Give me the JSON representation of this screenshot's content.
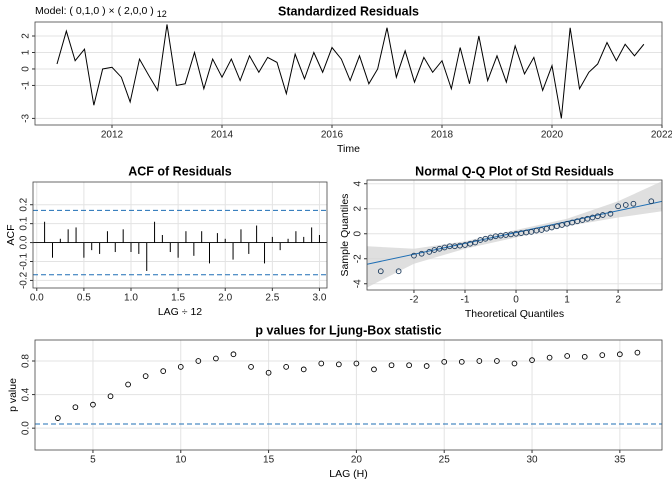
{
  "chart_data": [
    {
      "type": "line",
      "title": "Standardized Residuals",
      "model_label": "Model: ( 0,1,0 ) × ( 2,0,0 )",
      "model_period": "12",
      "xlabel": "Time",
      "color": "#000000",
      "grid": true,
      "x": [
        2011.0,
        2011.17,
        2011.33,
        2011.5,
        2011.67,
        2011.83,
        2012.0,
        2012.17,
        2012.33,
        2012.5,
        2012.67,
        2012.83,
        2013.0,
        2013.17,
        2013.33,
        2013.5,
        2013.67,
        2013.83,
        2014.0,
        2014.17,
        2014.33,
        2014.5,
        2014.67,
        2014.83,
        2015.0,
        2015.17,
        2015.33,
        2015.5,
        2015.67,
        2015.83,
        2016.0,
        2016.17,
        2016.33,
        2016.5,
        2016.67,
        2016.83,
        2017.0,
        2017.17,
        2017.33,
        2017.5,
        2017.67,
        2017.83,
        2018.0,
        2018.17,
        2018.33,
        2018.5,
        2018.67,
        2018.83,
        2019.0,
        2019.17,
        2019.33,
        2019.5,
        2019.67,
        2019.83,
        2020.0,
        2020.17,
        2020.33,
        2020.5,
        2020.67,
        2020.83,
        2021.0,
        2021.17,
        2021.33,
        2021.5,
        2021.67
      ],
      "values": [
        0.3,
        2.3,
        0.5,
        1.2,
        -2.2,
        0.0,
        0.1,
        -0.5,
        -2.0,
        0.6,
        -0.4,
        -1.3,
        2.7,
        -1.0,
        -0.9,
        1.0,
        -1.2,
        0.6,
        -0.5,
        0.6,
        -0.7,
        0.8,
        -0.2,
        0.7,
        0.4,
        -1.5,
        0.9,
        -0.6,
        1.0,
        -0.2,
        1.3,
        0.6,
        -0.7,
        0.8,
        -0.9,
        0.0,
        2.5,
        -0.5,
        1.1,
        -0.8,
        0.7,
        -0.2,
        0.5,
        -1.2,
        1.3,
        -0.9,
        2.0,
        -0.7,
        0.8,
        -0.8,
        1.4,
        -0.3,
        0.7,
        -1.3,
        0.2,
        -3.0,
        2.5,
        -1.2,
        -0.2,
        0.3,
        1.6,
        0.5,
        1.5,
        0.8,
        1.5
      ],
      "xlim": [
        2010.6,
        2022.0
      ],
      "ylim": [
        -3.4,
        2.85
      ],
      "xticks": [
        2012,
        2014,
        2016,
        2018,
        2020,
        2022
      ],
      "yticks": [
        -3,
        -1,
        0,
        1,
        2
      ]
    },
    {
      "type": "bar",
      "title": "ACF of Residuals",
      "xlabel": "LAG ÷ 12",
      "ylabel": "ACF",
      "color": "#000000",
      "grid": true,
      "x": [
        0.083,
        0.167,
        0.25,
        0.333,
        0.417,
        0.5,
        0.583,
        0.667,
        0.75,
        0.833,
        0.917,
        1.0,
        1.083,
        1.167,
        1.25,
        1.333,
        1.417,
        1.5,
        1.583,
        1.667,
        1.75,
        1.833,
        1.917,
        2.0,
        2.083,
        2.167,
        2.25,
        2.333,
        2.417,
        2.5,
        2.583,
        2.667,
        2.75,
        2.833,
        2.917,
        3.0
      ],
      "values": [
        0.11,
        -0.08,
        0.02,
        0.07,
        0.08,
        -0.08,
        -0.04,
        -0.06,
        0.06,
        -0.05,
        0.07,
        -0.05,
        -0.06,
        -0.15,
        0.11,
        0.04,
        -0.05,
        -0.08,
        0.06,
        -0.07,
        0.06,
        -0.11,
        0.05,
        0.02,
        -0.09,
        0.07,
        -0.06,
        0.09,
        -0.11,
        0.03,
        -0.04,
        0.02,
        0.06,
        0.03,
        0.08,
        0.04
      ],
      "hlines": [
        0.17,
        -0.17
      ],
      "hline_color": "#1f6fb5",
      "xlim": [
        -0.04,
        3.08
      ],
      "ylim": [
        -0.24,
        0.32
      ],
      "xticks": [
        {
          "value": 0,
          "label": "0.0"
        },
        0.5,
        {
          "value": 1,
          "label": "1.0"
        },
        1.5,
        {
          "value": 2,
          "label": "2.0"
        },
        2.5,
        {
          "value": 3,
          "label": "3.0"
        }
      ],
      "yticks": [
        -0.2,
        -0.1,
        {
          "value": 0,
          "label": "0.0"
        },
        0.1,
        0.2
      ]
    },
    {
      "type": "scatter",
      "title": "Normal Q-Q Plot of Std Residuals",
      "xlabel": "Theoretical Quantiles",
      "ylabel": "Sample Quantiles",
      "color": "#1b3a5c",
      "grid": true,
      "x": [
        -2.65,
        -2.3,
        -2.0,
        -1.85,
        -1.7,
        -1.6,
        -1.5,
        -1.4,
        -1.3,
        -1.2,
        -1.1,
        -1.0,
        -0.9,
        -0.8,
        -0.7,
        -0.6,
        -0.5,
        -0.4,
        -0.3,
        -0.2,
        -0.1,
        0,
        0.1,
        0.2,
        0.3,
        0.4,
        0.5,
        0.6,
        0.7,
        0.8,
        0.9,
        1.0,
        1.1,
        1.2,
        1.3,
        1.4,
        1.5,
        1.6,
        1.7,
        1.85,
        2.0,
        2.15,
        2.3,
        2.65
      ],
      "values": [
        -3.0,
        -3.0,
        -1.75,
        -1.6,
        -1.45,
        -1.3,
        -1.2,
        -1.1,
        -1.0,
        -1.0,
        -0.95,
        -0.9,
        -0.8,
        -0.7,
        -0.5,
        -0.4,
        -0.3,
        -0.2,
        -0.15,
        -0.1,
        -0.05,
        0.0,
        0.05,
        0.1,
        0.15,
        0.25,
        0.3,
        0.4,
        0.5,
        0.6,
        0.7,
        0.8,
        0.9,
        1.0,
        1.1,
        1.2,
        1.3,
        1.4,
        1.5,
        1.6,
        2.2,
        2.3,
        2.4,
        2.6
      ],
      "ref_line": {
        "x": [
          -2.92,
          2.86
        ],
        "y": [
          -2.44,
          2.59
        ],
        "color": "#1f6fb5"
      },
      "band": {
        "x": [
          -2.92,
          -2.0,
          -1.0,
          0,
          1.0,
          2.0,
          2.86
        ],
        "lower": [
          -4.3,
          -2.4,
          -1.2,
          -0.3,
          0.6,
          1.3,
          1.8
        ],
        "upper": [
          -1.0,
          -1.2,
          -0.6,
          0.3,
          1.2,
          2.6,
          4.2
        ],
        "color": "#d4d4d4"
      },
      "xlim": [
        -2.92,
        2.86
      ],
      "ylim": [
        -4.5,
        4.3
      ],
      "xticks": [
        -2,
        -1,
        0,
        1,
        2
      ],
      "yticks": [
        -4,
        -2,
        0,
        2,
        4
      ]
    },
    {
      "type": "scatter",
      "title": "p values for Ljung-Box statistic",
      "xlabel": "LAG (H)",
      "ylabel": "p value",
      "color": "#000000",
      "grid": true,
      "x": [
        3,
        4,
        5,
        6,
        7,
        8,
        9,
        10,
        11,
        12,
        13,
        14,
        15,
        16,
        17,
        18,
        19,
        20,
        21,
        22,
        23,
        24,
        25,
        26,
        27,
        28,
        29,
        30,
        31,
        32,
        33,
        34,
        35,
        36
      ],
      "values": [
        0.12,
        0.25,
        0.28,
        0.38,
        0.52,
        0.62,
        0.68,
        0.73,
        0.8,
        0.83,
        0.88,
        0.73,
        0.66,
        0.73,
        0.7,
        0.77,
        0.76,
        0.77,
        0.7,
        0.75,
        0.75,
        0.74,
        0.79,
        0.79,
        0.8,
        0.8,
        0.77,
        0.81,
        0.84,
        0.86,
        0.85,
        0.87,
        0.88,
        0.9
      ],
      "hlines": [
        0.05
      ],
      "hline_color": "#1f6fb5",
      "xlim": [
        1.7,
        37.4
      ],
      "ylim": [
        -0.26,
        1.05
      ],
      "xticks": [
        5,
        10,
        15,
        20,
        25,
        30,
        35
      ],
      "yticks": [
        {
          "value": 0,
          "label": "0.0"
        },
        0.4,
        0.8
      ]
    }
  ]
}
